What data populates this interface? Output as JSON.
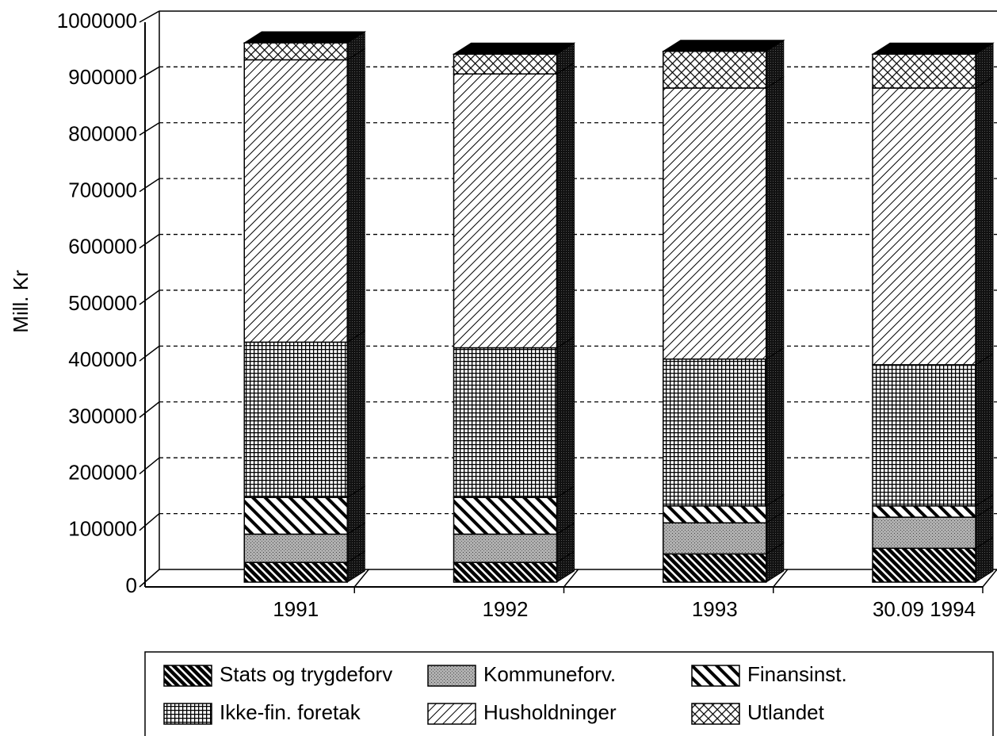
{
  "chart_data": {
    "type": "bar3d-stacked",
    "y_label": "Mill. Kr",
    "categories": [
      "1991",
      "1992",
      "1993",
      "30.09 1994"
    ],
    "series": [
      {
        "name": "Stats og trygdeforv",
        "pattern": "diag-dense",
        "values": [
          35000,
          35000,
          50000,
          60000
        ]
      },
      {
        "name": "Kommuneforv.",
        "pattern": "stipple",
        "values": [
          50000,
          50000,
          55000,
          55000
        ]
      },
      {
        "name": "Finansinst.",
        "pattern": "diag-wide",
        "values": [
          65000,
          65000,
          30000,
          20000
        ]
      },
      {
        "name": "Ikke-fin. foretak",
        "pattern": "grid",
        "values": [
          275000,
          265000,
          260000,
          250000
        ]
      },
      {
        "name": "Husholdninger",
        "pattern": "diag-thin",
        "values": [
          500000,
          485000,
          480000,
          490000
        ]
      },
      {
        "name": "Utlandet",
        "pattern": "crosshatch",
        "values": [
          30000,
          35000,
          65000,
          60000
        ]
      }
    ],
    "ylim": [
      0,
      1000000
    ],
    "yticks": [
      0,
      100000,
      200000,
      300000,
      400000,
      500000,
      600000,
      700000,
      800000,
      900000,
      1000000
    ],
    "grid": true
  }
}
